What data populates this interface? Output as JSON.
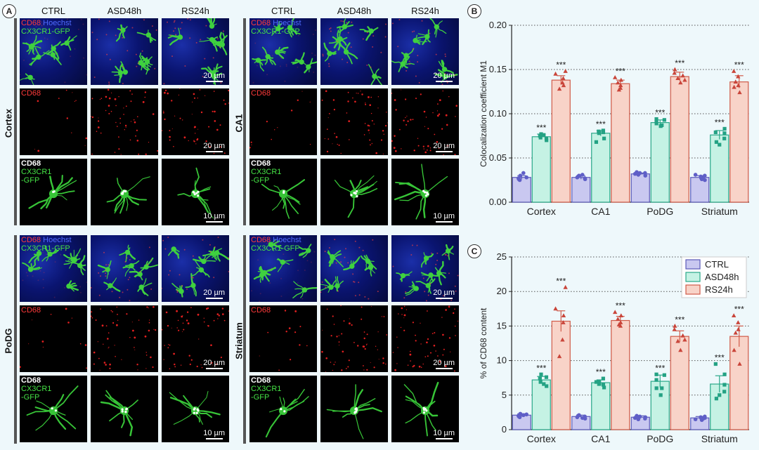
{
  "panels": {
    "a": "A",
    "b": "B",
    "c": "C"
  },
  "columns": [
    "CTRL",
    "ASD48h",
    "RS24h"
  ],
  "regions": [
    "Cortex",
    "CA1",
    "PoDG",
    "Striatum"
  ],
  "labels": {
    "cd68": "CD68",
    "hoechst": "Hoechst",
    "cx3cr1_gfp": "CX3CR1-GFP",
    "cx3cr1": "CX3CR1",
    "gfp": "-GFP"
  },
  "scalebars": {
    "big": "20 µm",
    "small": "10 µm"
  },
  "colors": {
    "ctrl_fill": "#c9c8f0",
    "ctrl_stroke": "#5a59b8",
    "ctrl_dot": "#5f5fc7",
    "asd_fill": "#c5f2e4",
    "asd_stroke": "#2aa889",
    "asd_dot": "#24a284",
    "rs_fill": "#f8d3c8",
    "rs_stroke": "#d05a48",
    "rs_dot": "#c9453a"
  },
  "chart_data": [
    {
      "type": "bar",
      "panel": "B",
      "ylabel": "Colocalization coefficient M1",
      "categories": [
        "Cortex",
        "CA1",
        "PoDG",
        "Striatum"
      ],
      "ylim": [
        0.0,
        0.2
      ],
      "yticks": [
        "0.00",
        "0.05",
        "0.10",
        "0.15",
        "0.20"
      ],
      "grid": "horizontal dotted",
      "series": [
        {
          "name": "CTRL",
          "values": [
            0.028,
            0.028,
            0.032,
            0.028
          ],
          "errors": [
            0.002,
            0.002,
            0.001,
            0.002
          ],
          "points": [
            [
              0.025,
              0.027,
              0.028,
              0.03,
              0.033,
              0.026
            ],
            [
              0.026,
              0.028,
              0.029,
              0.03,
              0.027,
              0.031
            ],
            [
              0.031,
              0.032,
              0.033,
              0.034,
              0.03,
              0.033
            ],
            [
              0.026,
              0.028,
              0.029,
              0.03,
              0.025,
              0.031
            ]
          ]
        },
        {
          "name": "ASD48h",
          "values": [
            0.074,
            0.078,
            0.09,
            0.076
          ],
          "errors": [
            0.003,
            0.003,
            0.003,
            0.005
          ],
          "points": [
            [
              0.07,
              0.073,
              0.075,
              0.077,
              0.072,
              0.076
            ],
            [
              0.072,
              0.078,
              0.08,
              0.081,
              0.068,
              0.079
            ],
            [
              0.086,
              0.089,
              0.091,
              0.093,
              0.094,
              0.087
            ],
            [
              0.068,
              0.072,
              0.078,
              0.083,
              0.079,
              0.065
            ]
          ]
        },
        {
          "name": "RS24h",
          "values": [
            0.138,
            0.134,
            0.142,
            0.136
          ],
          "errors": [
            0.005,
            0.004,
            0.005,
            0.007
          ],
          "points": [
            [
              0.128,
              0.135,
              0.14,
              0.145,
              0.148,
              0.132
            ],
            [
              0.129,
              0.132,
              0.135,
              0.138,
              0.141,
              0.127
            ],
            [
              0.135,
              0.14,
              0.143,
              0.146,
              0.15,
              0.138
            ],
            [
              0.124,
              0.13,
              0.136,
              0.142,
              0.148,
              0.132
            ]
          ]
        }
      ],
      "annotations": [
        "***",
        "***",
        "***",
        "***",
        "***",
        "***",
        "***",
        "***"
      ]
    },
    {
      "type": "bar",
      "panel": "C",
      "ylabel": "% of CD68 content",
      "categories": [
        "Cortex",
        "CA1",
        "PoDG",
        "Striatum"
      ],
      "ylim": [
        0,
        25
      ],
      "yticks": [
        "0",
        "5",
        "10",
        "15",
        "20",
        "25"
      ],
      "grid": "horizontal dotted",
      "legend": "top-right",
      "series": [
        {
          "name": "CTRL",
          "values": [
            2.1,
            1.9,
            1.8,
            1.7
          ],
          "errors": [
            0.2,
            0.2,
            0.2,
            0.2
          ],
          "points": [
            [
              1.8,
              2.0,
              2.2,
              2.3,
              2.1,
              1.9
            ],
            [
              1.6,
              1.8,
              2.0,
              2.1,
              1.9,
              1.7
            ],
            [
              1.5,
              1.7,
              1.9,
              2.0,
              1.8,
              1.6
            ],
            [
              1.4,
              1.6,
              1.8,
              1.9,
              1.7,
              1.5
            ]
          ]
        },
        {
          "name": "ASD48h",
          "values": [
            7.2,
            6.8,
            7.0,
            6.6
          ],
          "errors": [
            0.5,
            0.4,
            0.9,
            1.2
          ],
          "points": [
            [
              6.3,
              6.9,
              7.4,
              8.0,
              7.6,
              6.6
            ],
            [
              6.1,
              6.6,
              7.0,
              7.4,
              6.9,
              6.5
            ],
            [
              5.0,
              6.0,
              7.2,
              7.9,
              8.0,
              6.0
            ],
            [
              4.5,
              5.5,
              6.5,
              8.0,
              9.5,
              5.0
            ]
          ]
        },
        {
          "name": "RS24h",
          "values": [
            15.7,
            15.8,
            13.5,
            13.5
          ],
          "errors": [
            1.5,
            0.6,
            0.8,
            1.5
          ],
          "points": [
            [
              10.6,
              13.0,
              15.5,
              17.5,
              20.6,
              16.5
            ],
            [
              15.0,
              15.5,
              16.0,
              16.5,
              17.0,
              15.2
            ],
            [
              11.5,
              12.8,
              13.6,
              14.5,
              15.0,
              13.0
            ],
            [
              9.5,
              11.5,
              14.0,
              15.5,
              16.5,
              14.5
            ]
          ]
        }
      ],
      "annotations": [
        "***",
        "***",
        "***",
        "***",
        "***",
        "***",
        "***",
        "***"
      ]
    }
  ]
}
